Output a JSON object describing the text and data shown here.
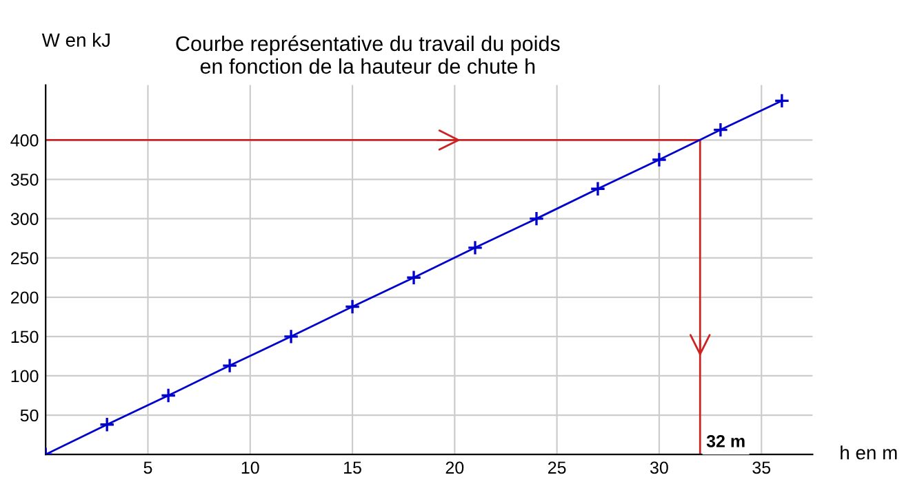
{
  "chart_data": {
    "type": "line",
    "title": "Courbe représentative du travail du poids\nen fonction de la hauteur de chute h",
    "xlabel": "h en m",
    "ylabel": "W en kJ",
    "x": [
      0,
      3,
      6,
      9,
      12,
      15,
      18,
      21,
      24,
      27,
      30,
      33,
      36
    ],
    "series": [
      {
        "color": "#0000cc",
        "values": [
          0,
          38,
          75,
          113,
          150,
          188,
          225,
          263,
          300,
          338,
          375,
          413,
          450
        ]
      }
    ],
    "xlim": [
      0,
      37.5
    ],
    "ylim": [
      0,
      470
    ],
    "xticks": [
      5,
      10,
      15,
      20,
      25,
      30,
      35
    ],
    "yticks": [
      50,
      100,
      150,
      200,
      250,
      300,
      350,
      400
    ],
    "ref_lines": [
      {
        "axis": "y",
        "value": 400,
        "label": null,
        "color": "#cc2222"
      },
      {
        "axis": "x",
        "value": 32,
        "label": "32 m",
        "color": "#cc2222"
      }
    ],
    "grid": true,
    "marker": "cross",
    "line_style": "solid"
  }
}
